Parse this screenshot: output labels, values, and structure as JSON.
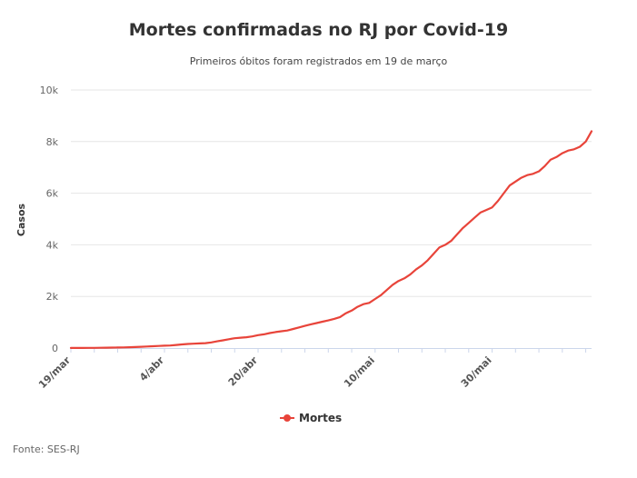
{
  "chart_data": {
    "type": "line",
    "title": "Mortes confirmadas no RJ por Covid-19",
    "subtitle": "Primeiros óbitos foram registrados em 19 de março",
    "ylabel": "Casos",
    "xlabel": "",
    "ylim": [
      0,
      10000
    ],
    "yticks": [
      0,
      2000,
      4000,
      6000,
      8000,
      10000
    ],
    "ytick_labels": [
      "0",
      "2k",
      "4k",
      "6k",
      "8k",
      "10k"
    ],
    "x_start": "19/mar",
    "xticks": [
      {
        "label": "19/mar",
        "day": 0
      },
      {
        "label": "4/abr",
        "day": 16
      },
      {
        "label": "20/abr",
        "day": 32
      },
      {
        "label": "10/mai",
        "day": 52
      },
      {
        "label": "30/mai",
        "day": 72
      }
    ],
    "x_last_day": 89,
    "grid": true,
    "legend_position": "bottom",
    "series": [
      {
        "name": "Mortes",
        "color": "#e8443a",
        "values": [
          2,
          3,
          4,
          6,
          8,
          10,
          13,
          17,
          20,
          25,
          30,
          40,
          50,
          60,
          70,
          80,
          90,
          100,
          120,
          140,
          160,
          170,
          180,
          190,
          220,
          260,
          300,
          340,
          380,
          400,
          420,
          450,
          500,
          530,
          580,
          620,
          650,
          680,
          740,
          800,
          860,
          920,
          970,
          1020,
          1070,
          1130,
          1200,
          1350,
          1450,
          1600,
          1700,
          1750,
          1900,
          2050,
          2250,
          2450,
          2600,
          2700,
          2850,
          3050,
          3200,
          3400,
          3650,
          3900,
          4000,
          4150,
          4400,
          4650,
          4850,
          5050,
          5250,
          5350,
          5450,
          5700,
          6000,
          6300,
          6450,
          6600,
          6700,
          6750,
          6850,
          7050,
          7300,
          7400,
          7550,
          7650,
          7700,
          7800,
          8000,
          8400
        ]
      }
    ]
  },
  "source": "Fonte: SES-RJ"
}
